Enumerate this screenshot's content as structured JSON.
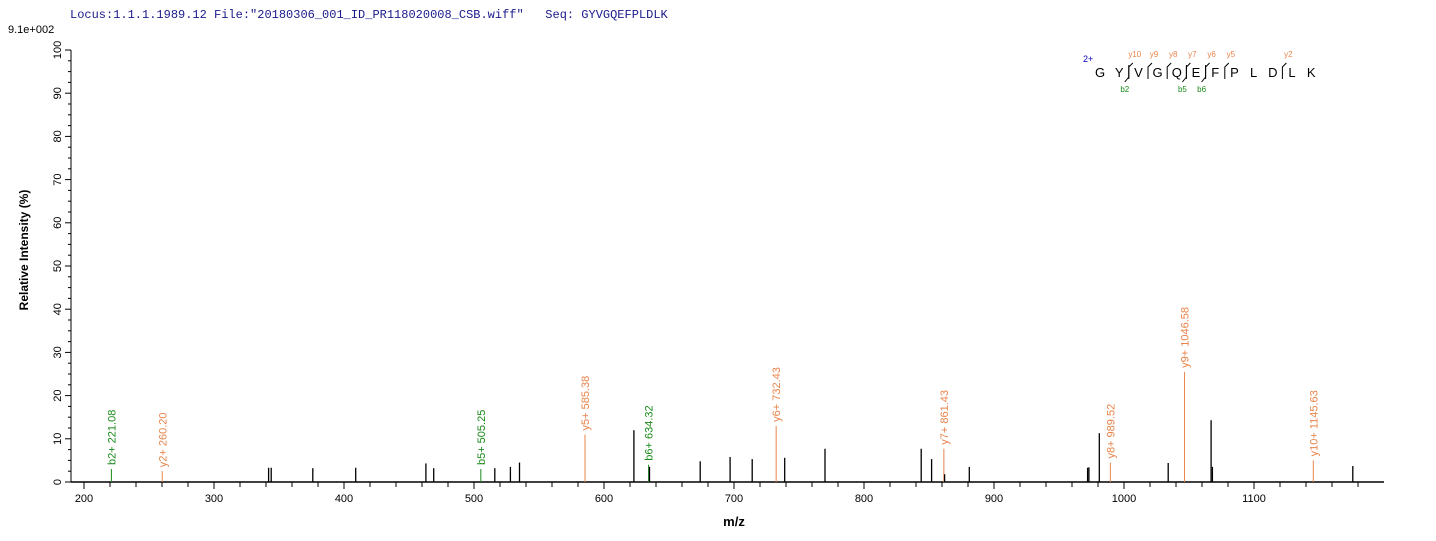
{
  "header": {
    "locus": "Locus:1.1.1.1989.12",
    "file": "File:\"20180306_001_ID_PR118020008_CSB.wiff\"",
    "seq": "Seq: GYVGQEFPLDLK"
  },
  "scale_label": "9.1e+002",
  "chart_data": {
    "type": "bar",
    "xlabel": "m/z",
    "ylabel": "Relative   Intensity (%)",
    "xlim": [
      190,
      1200
    ],
    "ylim": [
      0,
      100
    ],
    "xticks": [
      200,
      300,
      400,
      500,
      600,
      700,
      800,
      900,
      1000,
      1100
    ],
    "yticks": [
      0,
      10,
      20,
      30,
      40,
      50,
      60,
      70,
      80,
      90,
      100
    ],
    "colors": {
      "b": "#1a8a1a",
      "y": "#e8844a",
      "unassigned": "#000000",
      "charge": "#0000c0"
    },
    "peaks": [
      {
        "mz": 221.08,
        "intensity": 3.0,
        "type": "b",
        "label": "b2+ 221.08"
      },
      {
        "mz": 260.2,
        "intensity": 2.5,
        "type": "y",
        "label": "y2+ 260.20"
      },
      {
        "mz": 342,
        "intensity": 3.3
      },
      {
        "mz": 344,
        "intensity": 3.3
      },
      {
        "mz": 376,
        "intensity": 3.2
      },
      {
        "mz": 409,
        "intensity": 3.3
      },
      {
        "mz": 463,
        "intensity": 4.3
      },
      {
        "mz": 469,
        "intensity": 3.2
      },
      {
        "mz": 505.25,
        "intensity": 3.0,
        "type": "b",
        "label": "b5+ 505.25"
      },
      {
        "mz": 516,
        "intensity": 3.2
      },
      {
        "mz": 528,
        "intensity": 3.5
      },
      {
        "mz": 535,
        "intensity": 4.5
      },
      {
        "mz": 585.38,
        "intensity": 11.0,
        "type": "y",
        "label": "y5+ 585.38"
      },
      {
        "mz": 623,
        "intensity": 12.0
      },
      {
        "mz": 634.32,
        "intensity": 4.0,
        "type": "b",
        "label": "b6+ 634.32"
      },
      {
        "mz": 635,
        "intensity": 3.5
      },
      {
        "mz": 674,
        "intensity": 4.8
      },
      {
        "mz": 697,
        "intensity": 5.8
      },
      {
        "mz": 714,
        "intensity": 5.3
      },
      {
        "mz": 732.43,
        "intensity": 13.0,
        "type": "y",
        "label": "y6+ 732.43"
      },
      {
        "mz": 739,
        "intensity": 5.6
      },
      {
        "mz": 770,
        "intensity": 7.7
      },
      {
        "mz": 844,
        "intensity": 7.7
      },
      {
        "mz": 852,
        "intensity": 5.3
      },
      {
        "mz": 861.43,
        "intensity": 7.7,
        "type": "y",
        "label": "y7+ 861.43"
      },
      {
        "mz": 862,
        "intensity": 1.8
      },
      {
        "mz": 881,
        "intensity": 3.5
      },
      {
        "mz": 972,
        "intensity": 3.3
      },
      {
        "mz": 973,
        "intensity": 3.4
      },
      {
        "mz": 981,
        "intensity": 11.3
      },
      {
        "mz": 989.52,
        "intensity": 4.5,
        "type": "y",
        "label": "y8+ 989.52"
      },
      {
        "mz": 1034,
        "intensity": 4.4
      },
      {
        "mz": 1046.58,
        "intensity": 25.5,
        "type": "y",
        "label": "y9+ 1046.58"
      },
      {
        "mz": 1067,
        "intensity": 14.3
      },
      {
        "mz": 1068,
        "intensity": 3.5
      },
      {
        "mz": 1145.63,
        "intensity": 5.0,
        "type": "y",
        "label": "y10+ 1145.63"
      },
      {
        "mz": 1176,
        "intensity": 3.7
      }
    ],
    "sequence": {
      "charge": "2+",
      "residues": [
        "G",
        "Y",
        "V",
        "G",
        "Q",
        "E",
        "F",
        "P",
        "L",
        "D",
        "L",
        "K"
      ],
      "y_ions": [
        {
          "after": 2,
          "label": "y10"
        },
        {
          "after": 3,
          "label": "y9"
        },
        {
          "after": 4,
          "label": "y8"
        },
        {
          "after": 5,
          "label": "y7"
        },
        {
          "after": 6,
          "label": "y6"
        },
        {
          "after": 7,
          "label": "y5"
        },
        {
          "after": 10,
          "label": "y2"
        }
      ],
      "b_ions": [
        {
          "after": 2,
          "label": "b2"
        },
        {
          "after": 5,
          "label": "b5"
        },
        {
          "after": 6,
          "label": "b6"
        }
      ]
    }
  }
}
